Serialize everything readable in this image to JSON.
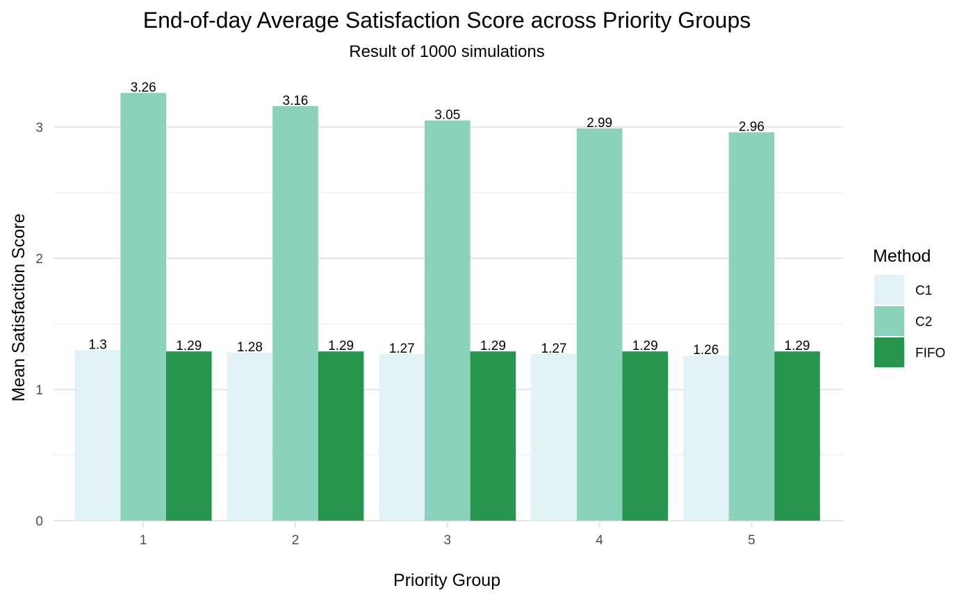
{
  "chart_data": {
    "type": "bar",
    "title": "End-of-day Average Satisfaction Score across Priority Groups",
    "subtitle": "Result of 1000 simulations",
    "xlabel": "Priority Group",
    "ylabel": "Mean Satisfaction Score",
    "categories": [
      "1",
      "2",
      "3",
      "4",
      "5"
    ],
    "ylim": [
      0,
      3.4
    ],
    "yticks": [
      0,
      1,
      2,
      3
    ],
    "yticks_labels": [
      "0",
      "1",
      "2",
      "3"
    ],
    "grid": true,
    "legend": {
      "title": "Method",
      "position": "right"
    },
    "series": [
      {
        "name": "C1",
        "color": "#e0f2f6",
        "values": [
          1.3,
          1.28,
          1.27,
          1.27,
          1.26
        ],
        "labels": [
          "1.3",
          "1.28",
          "1.27",
          "1.27",
          "1.26"
        ]
      },
      {
        "name": "C2",
        "color": "#8ad2bc",
        "values": [
          3.26,
          3.16,
          3.05,
          2.99,
          2.96
        ],
        "labels": [
          "3.26",
          "3.16",
          "3.05",
          "2.99",
          "2.96"
        ]
      },
      {
        "name": "FIFO",
        "color": "#28954d",
        "values": [
          1.29,
          1.29,
          1.29,
          1.29,
          1.29
        ],
        "labels": [
          "1.29",
          "1.29",
          "1.29",
          "1.29",
          "1.29"
        ]
      }
    ]
  }
}
